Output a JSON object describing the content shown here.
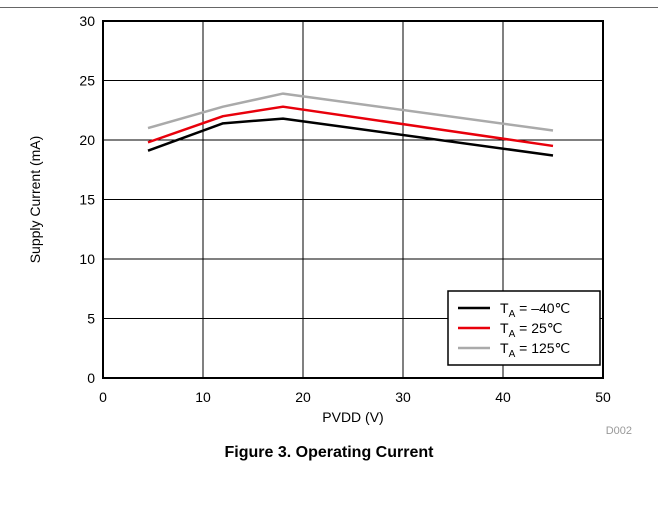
{
  "caption": "Figure 3. Operating Current",
  "figure_code": "D002",
  "chart_data": {
    "type": "line",
    "xlabel": "PVDD (V)",
    "ylabel": "Supply Current (mA)",
    "xlim": [
      0,
      50
    ],
    "ylim": [
      0,
      30
    ],
    "xticks": [
      0,
      10,
      20,
      30,
      40,
      50
    ],
    "yticks": [
      0,
      5,
      10,
      15,
      20,
      25,
      30
    ],
    "grid": true,
    "legend_position": "bottom-right",
    "series": [
      {
        "name_main": "T",
        "name_sub": "A",
        "name_rest": " = –40℃",
        "color": "#000000",
        "x": [
          4.5,
          12,
          18,
          45
        ],
        "y": [
          19.1,
          21.4,
          21.8,
          18.7
        ]
      },
      {
        "name_main": "T",
        "name_sub": "A",
        "name_rest": " = 25℃",
        "color": "#e8000b",
        "x": [
          4.5,
          12,
          18,
          45
        ],
        "y": [
          19.8,
          22.0,
          22.8,
          19.5
        ]
      },
      {
        "name_main": "T",
        "name_sub": "A",
        "name_rest": " = 125℃",
        "color": "#aaaaaa",
        "x": [
          4.5,
          12,
          18,
          45
        ],
        "y": [
          21.0,
          22.8,
          23.9,
          20.8
        ]
      }
    ]
  }
}
